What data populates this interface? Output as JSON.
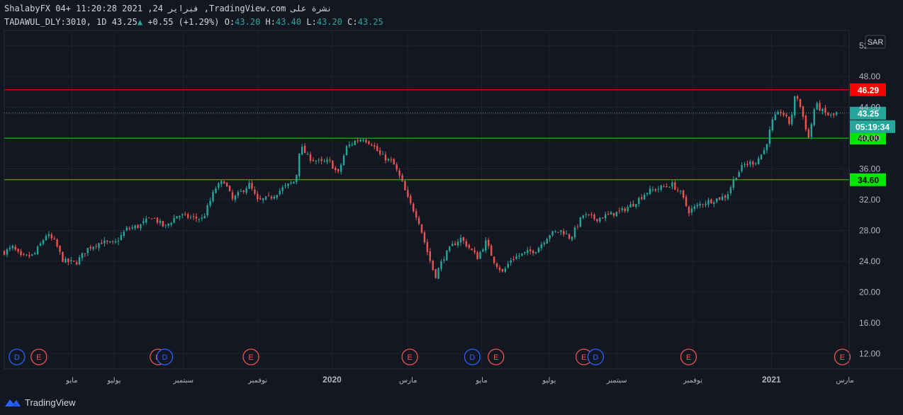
{
  "header": {
    "line1": "ShalabyFX 04+ 11:20:28 2021 ,24 فبراير ,TradingView.com نشرة على",
    "symbol": "TADAWUL_DLY:3010, 1D",
    "last": "43.25",
    "change": "+0.55 (+1.29%)",
    "o_label": "O:",
    "o": "43.20",
    "h_label": "H:",
    "h": "43.40",
    "l_label": "L:",
    "l": "43.20",
    "c_label": "C:",
    "c": "43.25"
  },
  "footer": {
    "brand": "TradingView"
  },
  "colors": {
    "up": "#26a69a",
    "down": "#ef5350",
    "resistance": "#ff0000",
    "support": "#00e600",
    "background": "#131722",
    "grid": "#1e222d"
  },
  "chart_data": {
    "type": "candlestick",
    "currency": "SAR",
    "ylim": [
      10,
      54
    ],
    "yticks": [
      "12.00",
      "16.00",
      "20.00",
      "24.00",
      "28.00",
      "32.00",
      "36.00",
      "40.00",
      "44.00",
      "48.00",
      "52.00"
    ],
    "xticks": [
      {
        "label": "مايو",
        "t": 0.08,
        "bold": false
      },
      {
        "label": "يوليو",
        "t": 0.13,
        "bold": false
      },
      {
        "label": "سبتمبر",
        "t": 0.212,
        "bold": false
      },
      {
        "label": "نوفمبر",
        "t": 0.3,
        "bold": false
      },
      {
        "label": "2020",
        "t": 0.388,
        "bold": true
      },
      {
        "label": "مارس",
        "t": 0.478,
        "bold": false
      },
      {
        "label": "مايو",
        "t": 0.565,
        "bold": false
      },
      {
        "label": "يوليو",
        "t": 0.645,
        "bold": false
      },
      {
        "label": "سبتمبر",
        "t": 0.725,
        "bold": false
      },
      {
        "label": "نوفمبر",
        "t": 0.815,
        "bold": false
      },
      {
        "label": "2021",
        "t": 0.908,
        "bold": true
      },
      {
        "label": "مارس",
        "t": 0.995,
        "bold": false
      }
    ],
    "horizontal_lines": [
      {
        "value": 46.29,
        "label": "46.29",
        "kind": "resistance"
      },
      {
        "value": 40.0,
        "label": "40.00",
        "kind": "support"
      },
      {
        "value": 34.6,
        "label": "34.60",
        "kind": "support"
      }
    ],
    "last_price": {
      "value": 43.25,
      "label": "43.25",
      "countdown": "05:19:34"
    },
    "events": [
      {
        "type": "D",
        "t": 0.015
      },
      {
        "type": "E",
        "t": 0.041
      },
      {
        "type": "E",
        "t": 0.182
      },
      {
        "type": "D",
        "t": 0.19
      },
      {
        "type": "E",
        "t": 0.292
      },
      {
        "type": "E",
        "t": 0.48
      },
      {
        "type": "D",
        "t": 0.554
      },
      {
        "type": "E",
        "t": 0.582
      },
      {
        "type": "E",
        "t": 0.686
      },
      {
        "type": "D",
        "t": 0.7
      },
      {
        "type": "E",
        "t": 0.81
      },
      {
        "type": "E",
        "t": 0.992
      }
    ],
    "close_path": [
      [
        0.0,
        25.2
      ],
      [
        0.01,
        25.8
      ],
      [
        0.02,
        24.5
      ],
      [
        0.035,
        24.8
      ],
      [
        0.05,
        27.5
      ],
      [
        0.06,
        26.5
      ],
      [
        0.07,
        24.0
      ],
      [
        0.085,
        23.8
      ],
      [
        0.1,
        25.8
      ],
      [
        0.115,
        26.5
      ],
      [
        0.13,
        26.2
      ],
      [
        0.145,
        28.2
      ],
      [
        0.16,
        28.6
      ],
      [
        0.175,
        29.8
      ],
      [
        0.19,
        28.4
      ],
      [
        0.205,
        30.0
      ],
      [
        0.22,
        29.7
      ],
      [
        0.235,
        29.5
      ],
      [
        0.25,
        33.5
      ],
      [
        0.26,
        34.5
      ],
      [
        0.27,
        32.0
      ],
      [
        0.285,
        33.5
      ],
      [
        0.29,
        34.0
      ],
      [
        0.3,
        31.8
      ],
      [
        0.315,
        32.3
      ],
      [
        0.33,
        33.5
      ],
      [
        0.345,
        34.5
      ],
      [
        0.35,
        39.0
      ],
      [
        0.36,
        37.5
      ],
      [
        0.375,
        36.8
      ],
      [
        0.385,
        37.0
      ],
      [
        0.395,
        35.3
      ],
      [
        0.405,
        38.8
      ],
      [
        0.415,
        39.6
      ],
      [
        0.425,
        40.0
      ],
      [
        0.435,
        39.3
      ],
      [
        0.445,
        37.8
      ],
      [
        0.46,
        36.8
      ],
      [
        0.47,
        34.5
      ],
      [
        0.478,
        32.0
      ],
      [
        0.49,
        29.5
      ],
      [
        0.5,
        25.5
      ],
      [
        0.51,
        22.0
      ],
      [
        0.52,
        24.5
      ],
      [
        0.53,
        26.0
      ],
      [
        0.54,
        27.0
      ],
      [
        0.55,
        25.8
      ],
      [
        0.56,
        24.5
      ],
      [
        0.57,
        26.5
      ],
      [
        0.58,
        24.0
      ],
      [
        0.59,
        22.5
      ],
      [
        0.6,
        24.3
      ],
      [
        0.615,
        25.0
      ],
      [
        0.63,
        25.5
      ],
      [
        0.645,
        27.5
      ],
      [
        0.66,
        28.0
      ],
      [
        0.67,
        27.0
      ],
      [
        0.685,
        30.0
      ],
      [
        0.7,
        29.5
      ],
      [
        0.715,
        30.0
      ],
      [
        0.73,
        30.5
      ],
      [
        0.745,
        31.5
      ],
      [
        0.76,
        33.0
      ],
      [
        0.775,
        33.5
      ],
      [
        0.79,
        34.0
      ],
      [
        0.8,
        33.0
      ],
      [
        0.81,
        30.5
      ],
      [
        0.825,
        31.5
      ],
      [
        0.84,
        32.0
      ],
      [
        0.855,
        32.5
      ],
      [
        0.865,
        35.0
      ],
      [
        0.875,
        36.5
      ],
      [
        0.89,
        37.0
      ],
      [
        0.9,
        38.5
      ],
      [
        0.91,
        42.5
      ],
      [
        0.92,
        43.5
      ],
      [
        0.93,
        41.8
      ],
      [
        0.937,
        46.0
      ],
      [
        0.945,
        43.0
      ],
      [
        0.952,
        40.0
      ],
      [
        0.96,
        44.5
      ],
      [
        0.97,
        43.3
      ],
      [
        0.98,
        42.8
      ],
      [
        0.985,
        43.25
      ]
    ]
  }
}
